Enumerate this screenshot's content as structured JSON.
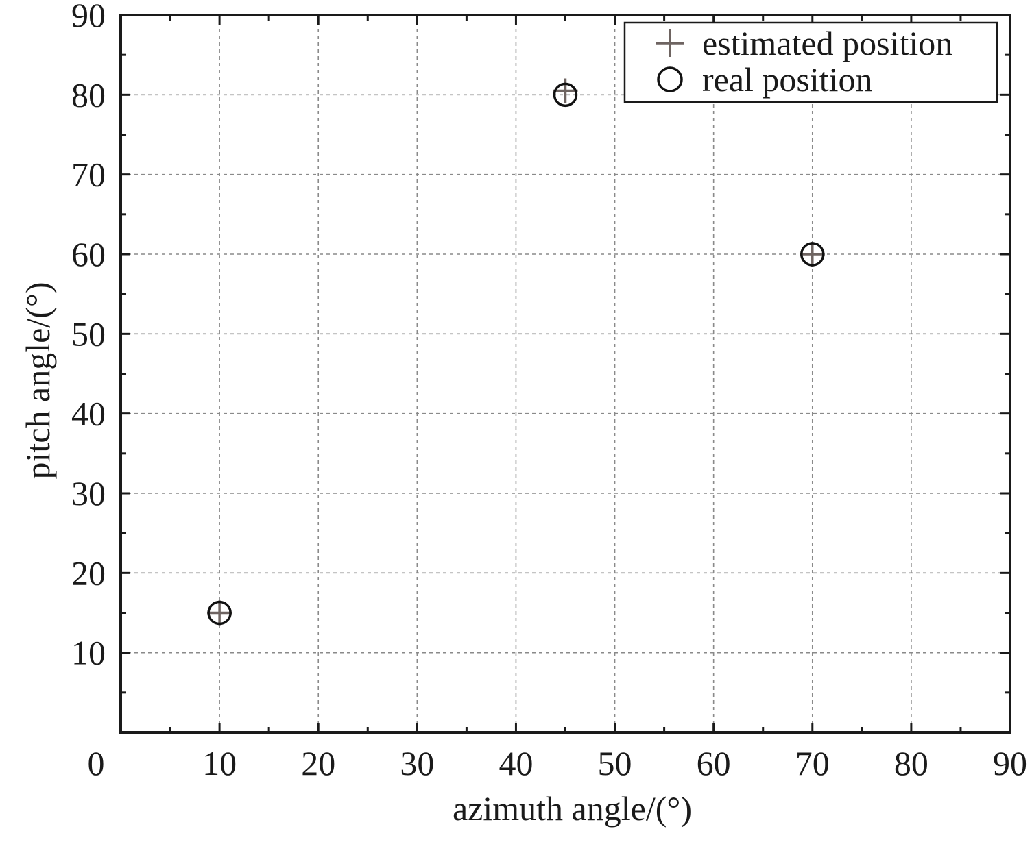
{
  "chart_data": {
    "type": "scatter",
    "title": "",
    "xlabel": "azimuth angle/(°)",
    "ylabel": "pitch angle/(°)",
    "xlim": [
      0,
      90
    ],
    "ylim": [
      0,
      90
    ],
    "xticks": [
      0,
      10,
      20,
      30,
      40,
      50,
      60,
      70,
      80,
      90
    ],
    "yticks": [
      10,
      20,
      30,
      40,
      50,
      60,
      70,
      80,
      90
    ],
    "xtick_labels": [
      "0",
      "10",
      "20",
      "30",
      "40",
      "50",
      "60",
      "70",
      "80",
      "90"
    ],
    "ytick_labels": [
      "10",
      "20",
      "30",
      "40",
      "50",
      "60",
      "70",
      "80",
      "90"
    ],
    "grid": true,
    "legend_position": "top-right",
    "series": [
      {
        "name": "estimated position",
        "marker": "plus",
        "color": "#6e6461",
        "points": [
          {
            "x": 10,
            "y": 15
          },
          {
            "x": 45,
            "y": 80.5
          },
          {
            "x": 70,
            "y": 60
          }
        ]
      },
      {
        "name": "real position",
        "marker": "circle",
        "color": "#111111",
        "points": [
          {
            "x": 10,
            "y": 15
          },
          {
            "x": 45,
            "y": 80
          },
          {
            "x": 70,
            "y": 60
          }
        ]
      }
    ]
  }
}
